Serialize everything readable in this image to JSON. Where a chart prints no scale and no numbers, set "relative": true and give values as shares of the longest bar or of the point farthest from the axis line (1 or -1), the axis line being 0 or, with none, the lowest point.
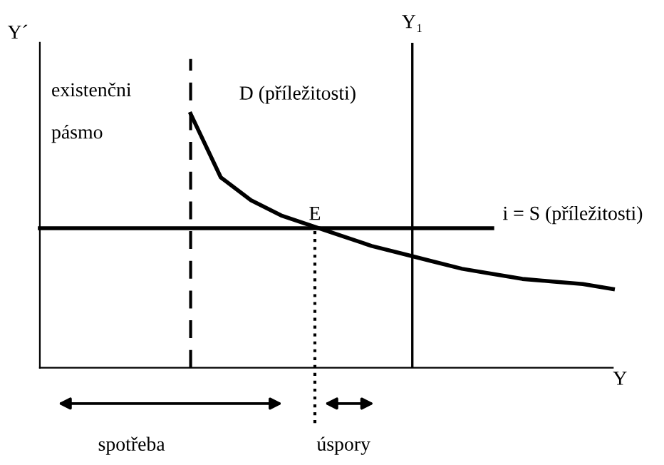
{
  "chart_data": {
    "type": "line",
    "relative": true,
    "xlabel": "Y",
    "ylabel": "Y´",
    "marker": "none",
    "ylim": [
      0,
      1.28
    ],
    "categories": [
      null,
      null,
      null,
      null,
      null,
      null,
      null,
      null,
      null,
      null,
      null,
      null,
      null,
      null,
      null,
      null,
      null,
      null,
      null,
      null
    ],
    "series": [
      {
        "name": "D (příležitosti)",
        "color": "#000000",
        "values": [
          null,
          null,
          null,
          null,
          null,
          1.0,
          0.75,
          0.66,
          0.6,
          0.56,
          0.52,
          0.48,
          0.45,
          0.42,
          0.39,
          0.37,
          0.35,
          0.34,
          0.33,
          0.31
        ]
      },
      {
        "name": "i = S (příležitosti)",
        "color": "#000000",
        "values": [
          0.55,
          0.55,
          0.55,
          0.55,
          0.55,
          0.55,
          0.55,
          0.55,
          0.55,
          0.55,
          0.55,
          0.55,
          0.55,
          0.55,
          0.55,
          0.55,
          null,
          null,
          null,
          null
        ]
      }
    ],
    "annotations": [
      "existenčni",
      "pásmo",
      "E",
      "spotřeba",
      "úspory",
      "Y₁"
    ]
  }
}
